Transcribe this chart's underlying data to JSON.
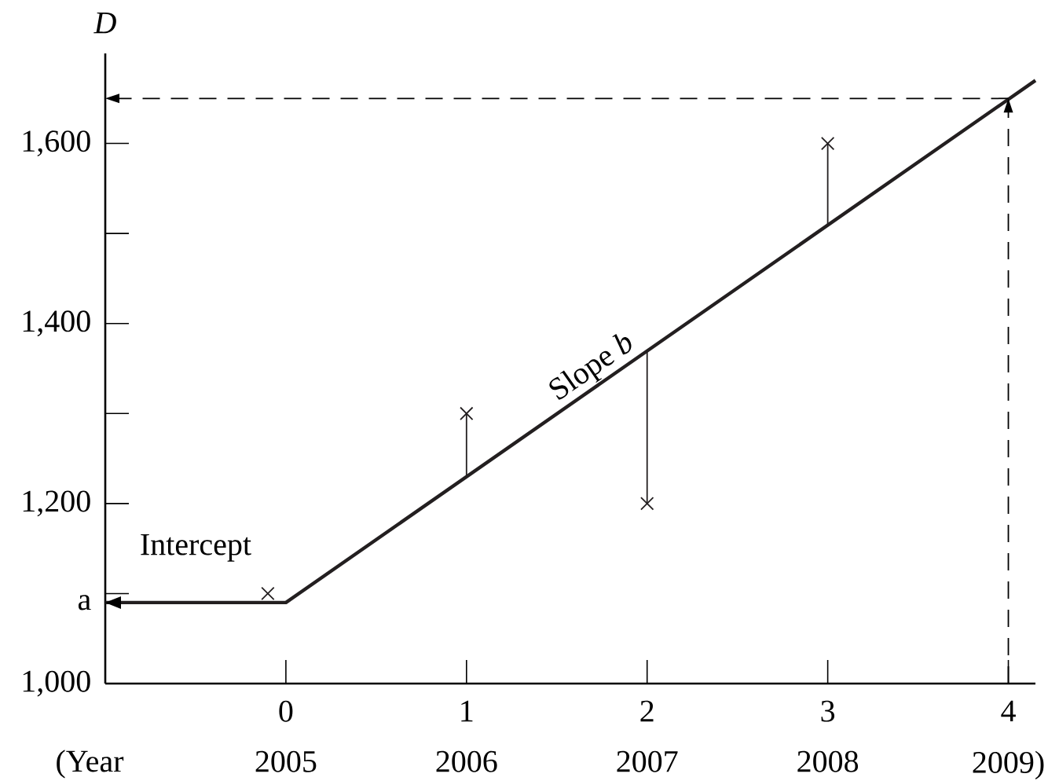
{
  "chart_data": {
    "type": "scatter",
    "ylabel": "D",
    "annotations": [
      "Intercept",
      {
        "text": "Slope *b*",
        "x": 1.75,
        "y": 1335
      },
      "(Year"
    ],
    "xlim": [
      -1,
      4.15
    ],
    "ylim": [
      1000,
      1700
    ],
    "xticks": [
      0,
      1,
      2,
      3,
      4
    ],
    "x2lim": [
      2004,
      2009.15
    ],
    "x2ticks": [
      2005,
      2006,
      2007,
      2008,
      {
        "value": 2009,
        "label": "2009)"
      }
    ],
    "yticks": [
      {
        "value": 1000,
        "label": "1,000"
      },
      {
        "value": 1090,
        "label": "a"
      },
      {
        "value": 1100,
        "label": null
      },
      {
        "value": 1200,
        "label": "1,200"
      },
      {
        "value": 1300,
        "label": null
      },
      {
        "value": 1400,
        "label": "1,400"
      },
      {
        "value": 1500,
        "label": null
      },
      {
        "value": 1600,
        "label": "1,600"
      }
    ],
    "grid": false,
    "series": [
      {
        "type": "line",
        "x": [
          -1,
          0,
          4.15
        ],
        "values": [
          1090,
          1090,
          1670
        ],
        "color": "#231f20",
        "line_style": "solid",
        "marker": "none"
      },
      {
        "type": "scatter",
        "x": [
          -0.1,
          1,
          2,
          3
        ],
        "values": [
          1100,
          1300,
          1200,
          1600
        ],
        "errors": [
          null,
          [
            1230,
            1300
          ],
          [
            1200,
            1370
          ],
          [
            1510,
            1600
          ]
        ],
        "color": "#231f20",
        "marker": "cross"
      }
    ],
    "ref_lines": [
      {
        "axis": "x",
        "value": 4,
        "line_style": "dashed"
      },
      {
        "axis": "y",
        "value": 1650,
        "line_style": "dashed"
      }
    ]
  }
}
